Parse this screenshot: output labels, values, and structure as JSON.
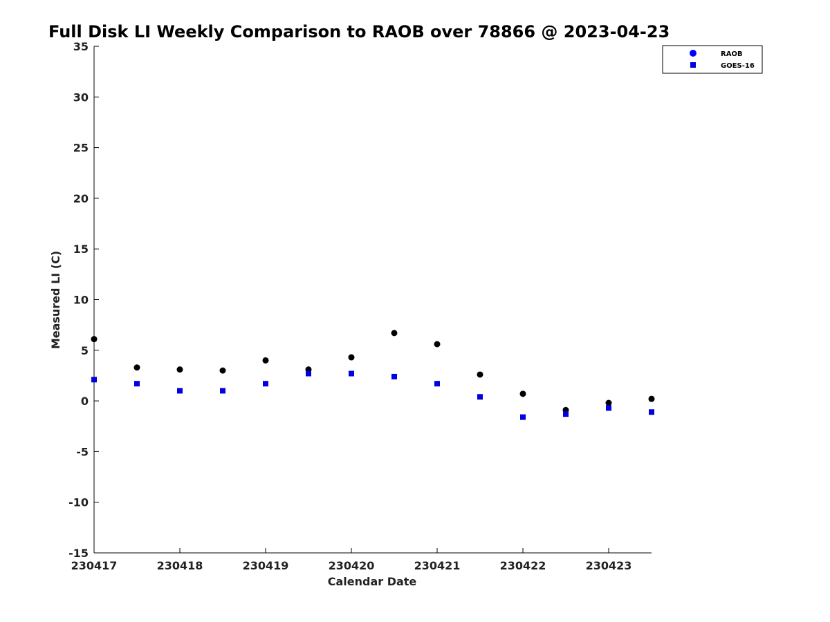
{
  "chart_data": {
    "type": "scatter",
    "title": "Full Disk LI Weekly Comparison to RAOB over 78866 @ 2023-04-23",
    "xlabel": "Calendar Date",
    "ylabel": "Measured LI (C)",
    "ylim": [
      -15,
      35
    ],
    "yticks": [
      -15,
      -10,
      -5,
      0,
      5,
      10,
      15,
      20,
      25,
      30,
      35
    ],
    "xlim": [
      "2023-04-17",
      "2023-04-23 12:00"
    ],
    "xticks": [
      {
        "date": "2023-04-17",
        "label": "230417"
      },
      {
        "date": "2023-04-18",
        "label": "230418"
      },
      {
        "date": "2023-04-19",
        "label": "230419"
      },
      {
        "date": "2023-04-20",
        "label": "230420"
      },
      {
        "date": "2023-04-21",
        "label": "230421"
      },
      {
        "date": "2023-04-22",
        "label": "230422"
      },
      {
        "date": "2023-04-23",
        "label": "230423"
      }
    ],
    "grid": false,
    "legend_position": "top-right",
    "series": [
      {
        "name": "RAOB",
        "marker": "circle",
        "color": "#000000",
        "legend_color": "#0000ff",
        "points": [
          {
            "x": "2023-04-17 00:00",
            "y": 6.1
          },
          {
            "x": "2023-04-17 12:00",
            "y": 3.3
          },
          {
            "x": "2023-04-18 00:00",
            "y": 3.1
          },
          {
            "x": "2023-04-18 12:00",
            "y": 3.0
          },
          {
            "x": "2023-04-19 00:00",
            "y": 4.0
          },
          {
            "x": "2023-04-19 12:00",
            "y": 3.1
          },
          {
            "x": "2023-04-20 00:00",
            "y": 4.3
          },
          {
            "x": "2023-04-20 12:00",
            "y": 6.7
          },
          {
            "x": "2023-04-21 00:00",
            "y": 5.6
          },
          {
            "x": "2023-04-21 12:00",
            "y": 2.6
          },
          {
            "x": "2023-04-22 00:00",
            "y": 0.7
          },
          {
            "x": "2023-04-22 12:00",
            "y": -0.9
          },
          {
            "x": "2023-04-23 00:00",
            "y": -0.2
          },
          {
            "x": "2023-04-23 12:00",
            "y": 0.2
          }
        ]
      },
      {
        "name": "GOES-16",
        "marker": "square",
        "color": "#0000e0",
        "legend_color": "#0000e0",
        "points": [
          {
            "x": "2023-04-17 00:00",
            "y": 2.1
          },
          {
            "x": "2023-04-17 12:00",
            "y": 1.7
          },
          {
            "x": "2023-04-18 00:00",
            "y": 1.0
          },
          {
            "x": "2023-04-18 12:00",
            "y": 1.0
          },
          {
            "x": "2023-04-19 00:00",
            "y": 1.7
          },
          {
            "x": "2023-04-19 12:00",
            "y": 2.7
          },
          {
            "x": "2023-04-20 00:00",
            "y": 2.7
          },
          {
            "x": "2023-04-20 12:00",
            "y": 2.4
          },
          {
            "x": "2023-04-21 00:00",
            "y": 1.7
          },
          {
            "x": "2023-04-21 12:00",
            "y": 0.4
          },
          {
            "x": "2023-04-22 00:00",
            "y": -1.6
          },
          {
            "x": "2023-04-22 12:00",
            "y": -1.3
          },
          {
            "x": "2023-04-23 00:00",
            "y": -0.7
          },
          {
            "x": "2023-04-23 12:00",
            "y": -1.1
          }
        ]
      }
    ]
  }
}
